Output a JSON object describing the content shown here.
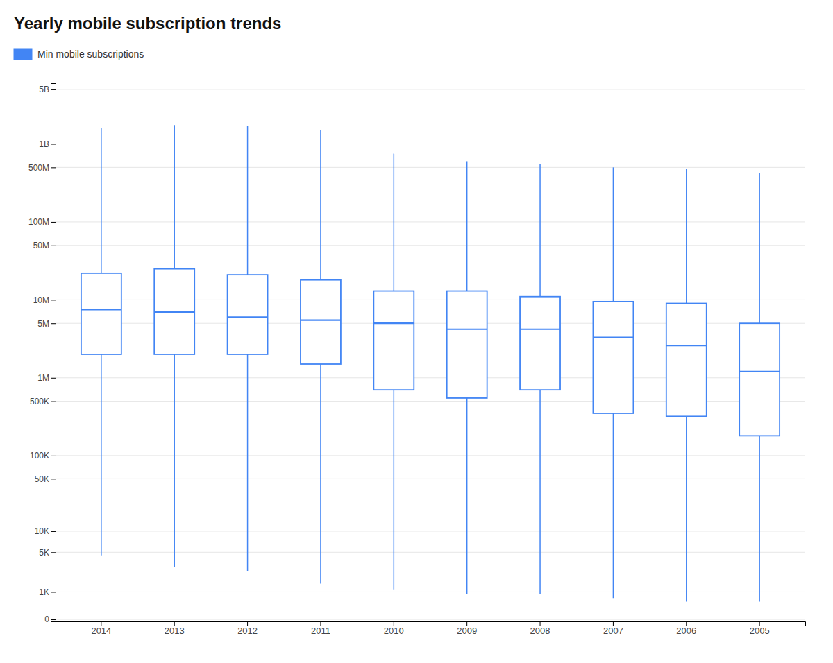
{
  "chart_data": {
    "type": "box",
    "title": "Yearly mobile subscription trends",
    "categories": [
      "2014",
      "2013",
      "2012",
      "2011",
      "2010",
      "2009",
      "2008",
      "2007",
      "2006",
      "2005"
    ],
    "series": [
      {
        "name": "Min mobile subscriptions",
        "color": "#4285f4",
        "values": [
          {
            "whisker_min": 4500,
            "q1": 2000000,
            "median": 7500000,
            "q3": 22000000,
            "whisker_max": 1600000000
          },
          {
            "whisker_min": 3000,
            "q1": 2000000,
            "median": 7000000,
            "q3": 25000000,
            "whisker_max": 1750000000
          },
          {
            "whisker_min": 2500,
            "q1": 2000000,
            "median": 6000000,
            "q3": 21000000,
            "whisker_max": 1700000000
          },
          {
            "whisker_min": 1500,
            "q1": 1500000,
            "median": 5500000,
            "q3": 18000000,
            "whisker_max": 1500000000
          },
          {
            "whisker_min": 1100,
            "q1": 700000,
            "median": 5000000,
            "q3": 13000000,
            "whisker_max": 750000000
          },
          {
            "whisker_min": 900,
            "q1": 550000,
            "median": 4200000,
            "q3": 13000000,
            "whisker_max": 600000000
          },
          {
            "whisker_min": 900,
            "q1": 700000,
            "median": 4200000,
            "q3": 11000000,
            "whisker_max": 550000000
          },
          {
            "whisker_min": 700,
            "q1": 350000,
            "median": 3300000,
            "q3": 9500000,
            "whisker_max": 500000000
          },
          {
            "whisker_min": 550,
            "q1": 320000,
            "median": 2600000,
            "q3": 9000000,
            "whisker_max": 480000000
          },
          {
            "whisker_min": 550,
            "q1": 180000,
            "median": 1200000,
            "q3": 5000000,
            "whisker_max": 420000000
          }
        ]
      }
    ],
    "log": "y",
    "ylim": [
      -50,
      6000000000
    ],
    "yticks": [
      0,
      {
        "value": 1000,
        "label": "1K"
      },
      {
        "value": 5000,
        "label": "5K"
      },
      {
        "value": 10000,
        "label": "10K"
      },
      {
        "value": 50000,
        "label": "50K"
      },
      {
        "value": 100000,
        "label": "100K"
      },
      {
        "value": 500000,
        "label": "500K"
      },
      {
        "value": 1000000,
        "label": "1M"
      },
      {
        "value": 5000000,
        "label": "5M"
      },
      {
        "value": 10000000,
        "label": "10M"
      },
      {
        "value": 50000000,
        "label": "50M"
      },
      {
        "value": 100000000,
        "label": "100M"
      },
      {
        "value": 500000000,
        "label": "500M"
      },
      {
        "value": 1000000000,
        "label": "1B"
      },
      {
        "value": 5000000000,
        "label": "5B"
      }
    ],
    "grid": true,
    "legend": "upper left"
  }
}
